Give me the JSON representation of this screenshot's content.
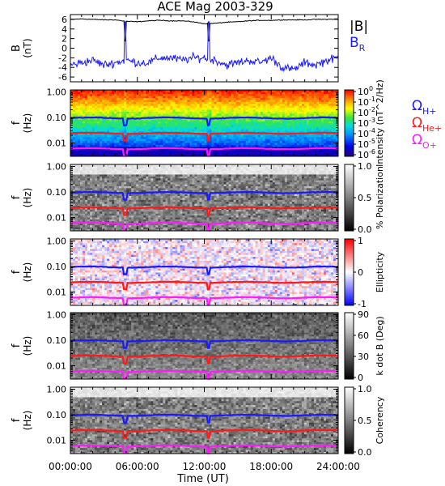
{
  "chart_data": {
    "type": "spectrogram",
    "title": "ACE Mag 2003-329",
    "x_axis": {
      "label": "Time (UT)",
      "ticks": [
        "00:00:00",
        "06:00:00",
        "12:00:00",
        "18:00:00",
        "24:00:00"
      ],
      "range_hours": [
        0,
        24
      ]
    },
    "panels": [
      {
        "id": "field",
        "type": "line",
        "ylabel": [
          "B",
          "(nT)"
        ],
        "yticks": [
          "6",
          "4",
          "2",
          "0",
          "-2",
          "-4",
          "-6"
        ],
        "ylim": [
          -7,
          7
        ],
        "legend": [
          {
            "label": "|B|",
            "color": "#000000"
          },
          {
            "label": "B_R",
            "color": "#1a1aff"
          }
        ],
        "series": [
          {
            "name": "|B|",
            "color": "#000000",
            "x_hours": [
              0,
              1,
              2,
              3,
              4,
              5,
              6,
              7,
              8,
              9,
              10,
              11,
              12,
              13,
              14,
              15,
              16,
              17,
              18,
              19,
              20,
              21,
              22,
              23,
              24
            ],
            "values": [
              6.0,
              6.1,
              6.0,
              5.9,
              5.9,
              5.6,
              5.5,
              5.7,
              5.8,
              5.7,
              5.7,
              5.5,
              5.1,
              5.2,
              5.4,
              5.5,
              5.7,
              5.8,
              5.8,
              5.9,
              5.9,
              5.9,
              6.0,
              6.0,
              6.1
            ]
          },
          {
            "name": "B_R",
            "color": "#1a1aff",
            "x_hours": [
              0,
              1,
              2,
              3,
              4,
              5,
              6,
              7,
              8,
              9,
              10,
              11,
              12,
              13,
              14,
              15,
              16,
              17,
              18,
              19,
              20,
              21,
              22,
              23,
              24
            ],
            "values": [
              -3.5,
              -3.0,
              -2.5,
              -3.5,
              -3.0,
              -2.5,
              -3.0,
              -3.0,
              -2.0,
              -2.0,
              -2.5,
              -2.0,
              -2.0,
              -2.5,
              -3.5,
              -3.0,
              -2.5,
              -3.0,
              -2.0,
              -4.0,
              -4.5,
              -3.0,
              -3.5,
              -2.5,
              -2.0
            ]
          }
        ],
        "transient_hours": [
          4.9,
          12.4
        ]
      },
      {
        "id": "intensity",
        "type": "heatmap",
        "ylabel": [
          "f",
          "(Hz)"
        ],
        "yticks": [
          "1.00",
          "0.10",
          "0.01"
        ],
        "colorbar": {
          "label": "Intensity (nT^2/Hz)",
          "ticks": [
            "10^0",
            "10^-1",
            "10^-2",
            "10^-3",
            "10^-4",
            "10^-5",
            "10^-6"
          ],
          "scale": "log",
          "range": [
            1e-06,
            1
          ]
        }
      },
      {
        "id": "polarization",
        "type": "heatmap",
        "ylabel": [
          "f",
          "(Hz)"
        ],
        "yticks": [
          "1.00",
          "0.10",
          "0.01"
        ],
        "colorbar": {
          "label": "% Polarization",
          "ticks": [
            "1.0",
            "0.5",
            "0.0"
          ],
          "range": [
            0,
            1
          ]
        }
      },
      {
        "id": "ellipticity",
        "type": "heatmap",
        "ylabel": [
          "f",
          "(Hz)"
        ],
        "yticks": [
          "1.00",
          "0.10",
          "0.01"
        ],
        "colorbar": {
          "label": "Ellipticity",
          "ticks": [
            "1",
            "0",
            "-1"
          ],
          "range": [
            -1,
            1
          ]
        }
      },
      {
        "id": "kdotb",
        "type": "heatmap",
        "ylabel": [
          "f",
          "(Hz)"
        ],
        "yticks": [
          "1.00",
          "0.10",
          "0.01"
        ],
        "colorbar": {
          "label": "k dot B (Deg)",
          "ticks": [
            "90",
            "60",
            "30",
            "0"
          ],
          "range": [
            0,
            90
          ]
        }
      },
      {
        "id": "coherency",
        "type": "heatmap",
        "ylabel": [
          "f",
          "(Hz)"
        ],
        "yticks": [
          "1.00",
          "0.10",
          "0.01"
        ],
        "colorbar": {
          "label": "Coherency",
          "ticks": [
            "1.0",
            "0.5",
            "0.0"
          ],
          "range": [
            0,
            1
          ]
        }
      }
    ],
    "frequency_axis": {
      "scale": "log",
      "range_hz": [
        0.003,
        1.2
      ]
    },
    "cyclotron_lines": [
      {
        "name": "Ω_H+",
        "color": "#1a1aff",
        "freq_hz": 0.095
      },
      {
        "name": "Ω_He+",
        "color": "#ff1a1a",
        "freq_hz": 0.024
      },
      {
        "name": "Ω_O+",
        "color": "#ff1aff",
        "freq_hz": 0.006
      }
    ],
    "gyro_legend": [
      {
        "symbol": "Ω",
        "sub": "H+",
        "color": "#1a1aff"
      },
      {
        "symbol": "Ω",
        "sub": "He+",
        "color": "#ff1a1a"
      },
      {
        "symbol": "Ω",
        "sub": "O+",
        "color": "#ff1aff"
      }
    ]
  }
}
